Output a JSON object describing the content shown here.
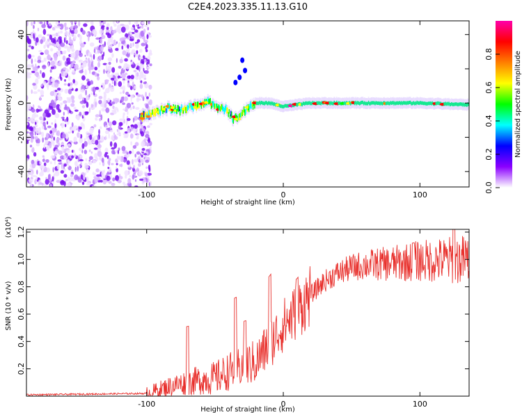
{
  "figure_title": "C2E4.2023.335.11.13.G10",
  "chart_data": [
    {
      "type": "heatmap",
      "xlabel": "Height of straight line (km)",
      "ylabel": "Frequency (Hz)",
      "xlim": [
        -188,
        136
      ],
      "ylim": [
        -49,
        48
      ],
      "x_ticks": [
        -100,
        0,
        100
      ],
      "x_tick_labels": [
        "-100",
        "0",
        "100"
      ],
      "y_ticks": [
        -40,
        -20,
        0,
        20,
        40
      ],
      "y_tick_labels": [
        "-40",
        "-20",
        "0",
        "20",
        "40"
      ],
      "noise_region_x": [
        -188,
        -100
      ],
      "signal_track": [
        {
          "x": -105,
          "y": -8
        },
        {
          "x": -95,
          "y": -6
        },
        {
          "x": -85,
          "y": -3
        },
        {
          "x": -75,
          "y": -4
        },
        {
          "x": -65,
          "y": -2
        },
        {
          "x": -55,
          "y": 1
        },
        {
          "x": -48,
          "y": -3
        },
        {
          "x": -42,
          "y": -4
        },
        {
          "x": -36,
          "y": -10
        },
        {
          "x": -30,
          "y": -5
        },
        {
          "x": -20,
          "y": 0
        },
        {
          "x": -10,
          "y": 0
        },
        {
          "x": 0,
          "y": -2
        },
        {
          "x": 20,
          "y": 0
        },
        {
          "x": 60,
          "y": 0
        },
        {
          "x": 100,
          "y": 0
        },
        {
          "x": 136,
          "y": -1
        }
      ],
      "branch_track": [
        {
          "x": -35,
          "y": 12
        },
        {
          "x": -32,
          "y": 15
        },
        {
          "x": -28,
          "y": 19
        },
        {
          "x": -30,
          "y": 25
        }
      ],
      "colorbar": {
        "label": "Normalized spectral amplitude",
        "range": [
          0.0,
          1.0
        ],
        "ticks": [
          0.0,
          0.2,
          0.4,
          0.6,
          0.8
        ],
        "tick_labels": [
          "0.0",
          "0.2",
          "0.4",
          "0.6",
          "0.8"
        ],
        "colors": [
          "#ffffff",
          "#8b00ff",
          "#0000ff",
          "#00ffff",
          "#00ff00",
          "#ffff00",
          "#ff7f00",
          "#ff0000",
          "#ff00aa"
        ]
      }
    },
    {
      "type": "line",
      "xlabel": "Height of straight line (km)",
      "ylabel": "SNR (10 * v/v)",
      "y_multiplier_label": "(x10⁴)",
      "xlim": [
        -188,
        136
      ],
      "ylim": [
        0.0,
        1.22
      ],
      "x_ticks": [
        -100,
        0,
        100
      ],
      "x_tick_labels": [
        "-100",
        "0",
        "100"
      ],
      "y_ticks": [
        0.2,
        0.4,
        0.6,
        0.8,
        1.0,
        1.2
      ],
      "y_tick_labels": [
        "0.2",
        "0.4",
        "0.6",
        "0.8",
        "1.0",
        "1.2"
      ],
      "series": [
        {
          "color": "#e8302c",
          "trend": [
            {
              "x": -188,
              "y": 0.01
            },
            {
              "x": -100,
              "y": 0.02
            },
            {
              "x": -90,
              "y": 0.05
            },
            {
              "x": -80,
              "y": 0.08
            },
            {
              "x": -70,
              "y": 0.1
            },
            {
              "x": -60,
              "y": 0.12
            },
            {
              "x": -50,
              "y": 0.13
            },
            {
              "x": -40,
              "y": 0.18
            },
            {
              "x": -30,
              "y": 0.22
            },
            {
              "x": -20,
              "y": 0.25
            },
            {
              "x": -10,
              "y": 0.38
            },
            {
              "x": 0,
              "y": 0.52
            },
            {
              "x": 10,
              "y": 0.62
            },
            {
              "x": 20,
              "y": 0.74
            },
            {
              "x": 30,
              "y": 0.84
            },
            {
              "x": 40,
              "y": 0.9
            },
            {
              "x": 50,
              "y": 0.94
            },
            {
              "x": 60,
              "y": 0.96
            },
            {
              "x": 80,
              "y": 0.97
            },
            {
              "x": 100,
              "y": 0.99
            },
            {
              "x": 136,
              "y": 1.0
            }
          ],
          "peaks": [
            {
              "x": -70,
              "y": 0.51
            },
            {
              "x": -35,
              "y": 0.72
            },
            {
              "x": -28,
              "y": 0.55
            },
            {
              "x": -10,
              "y": 0.88
            },
            {
              "x": 10,
              "y": 0.86
            },
            {
              "x": 95,
              "y": 1.12
            },
            {
              "x": 125,
              "y": 1.22
            }
          ]
        }
      ]
    }
  ]
}
